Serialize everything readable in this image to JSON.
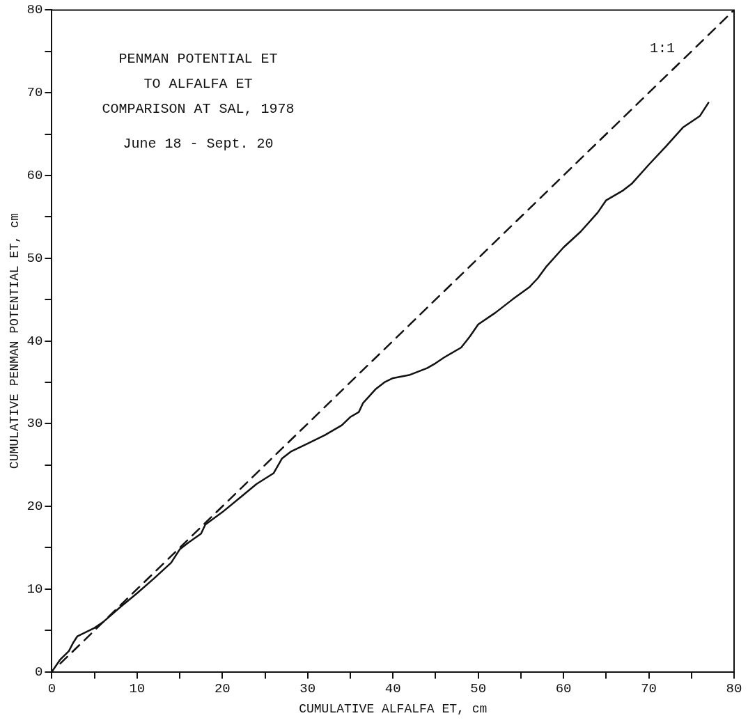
{
  "chart_data": {
    "type": "line",
    "xlabel": "CUMULATIVE ALFALFA ET, cm",
    "ylabel": "CUMULATIVE PENMAN POTENTIAL ET, cm",
    "annotations": [
      "PENMAN POTENTIAL ET",
      "TO ALFALFA ET",
      "COMPARISON AT SAL, 1978",
      "June 18 - Sept. 20"
    ],
    "xlim": [
      0,
      80
    ],
    "ylim": [
      0,
      80
    ],
    "xticks": [
      0,
      {
        "value": 5,
        "label": null
      },
      10,
      {
        "value": 15,
        "label": null
      },
      20,
      {
        "value": 25,
        "label": null
      },
      30,
      {
        "value": 35,
        "label": null
      },
      40,
      {
        "value": 45,
        "label": null
      },
      50,
      {
        "value": 55,
        "label": null
      },
      60,
      {
        "value": 65,
        "label": null
      },
      70,
      {
        "value": 75,
        "label": null
      },
      80
    ],
    "yticks": [
      0,
      {
        "value": 5,
        "label": null
      },
      10,
      {
        "value": 15,
        "label": null
      },
      20,
      {
        "value": 25,
        "label": null
      },
      30,
      {
        "value": 35,
        "label": null
      },
      40,
      {
        "value": 45,
        "label": null
      },
      50,
      {
        "value": 55,
        "label": null
      },
      60,
      {
        "value": 65,
        "label": null
      },
      70,
      {
        "value": 75,
        "label": null
      },
      80
    ],
    "grid": false,
    "legend": false,
    "marker": "none",
    "series": [
      {
        "color": "#111111",
        "line_style": "solid",
        "x": [
          0,
          1,
          2,
          2.5,
          3,
          5,
          6,
          8,
          10,
          12,
          14,
          15,
          16,
          17.5,
          18,
          20,
          22,
          24,
          26,
          27,
          28,
          30,
          32,
          34,
          35,
          36,
          36.5,
          38,
          39,
          40,
          42,
          44,
          45,
          46,
          48,
          49,
          50,
          52,
          54,
          56,
          57,
          58,
          60,
          62,
          64,
          65,
          67,
          68,
          70,
          72,
          74,
          76,
          77
        ],
        "values": [
          0,
          1.5,
          2.5,
          3.5,
          4.3,
          5.3,
          6,
          7.8,
          9.5,
          11.3,
          13.2,
          14.8,
          15.6,
          16.7,
          17.8,
          19.3,
          21,
          22.7,
          24,
          25.8,
          26.6,
          27.6,
          28.6,
          29.8,
          30.8,
          31.4,
          32.5,
          34.2,
          35,
          35.5,
          35.9,
          36.7,
          37.3,
          38,
          39.2,
          40.5,
          42,
          43.4,
          45,
          46.5,
          47.6,
          49,
          51.3,
          53.2,
          55.5,
          57,
          58.2,
          59,
          61.3,
          63.5,
          65.8,
          67.2,
          68.8
        ]
      },
      {
        "name": "1:1",
        "color": "#111111",
        "line_style": "dashed",
        "x": [
          1,
          80
        ],
        "values": [
          1,
          80
        ]
      }
    ]
  }
}
